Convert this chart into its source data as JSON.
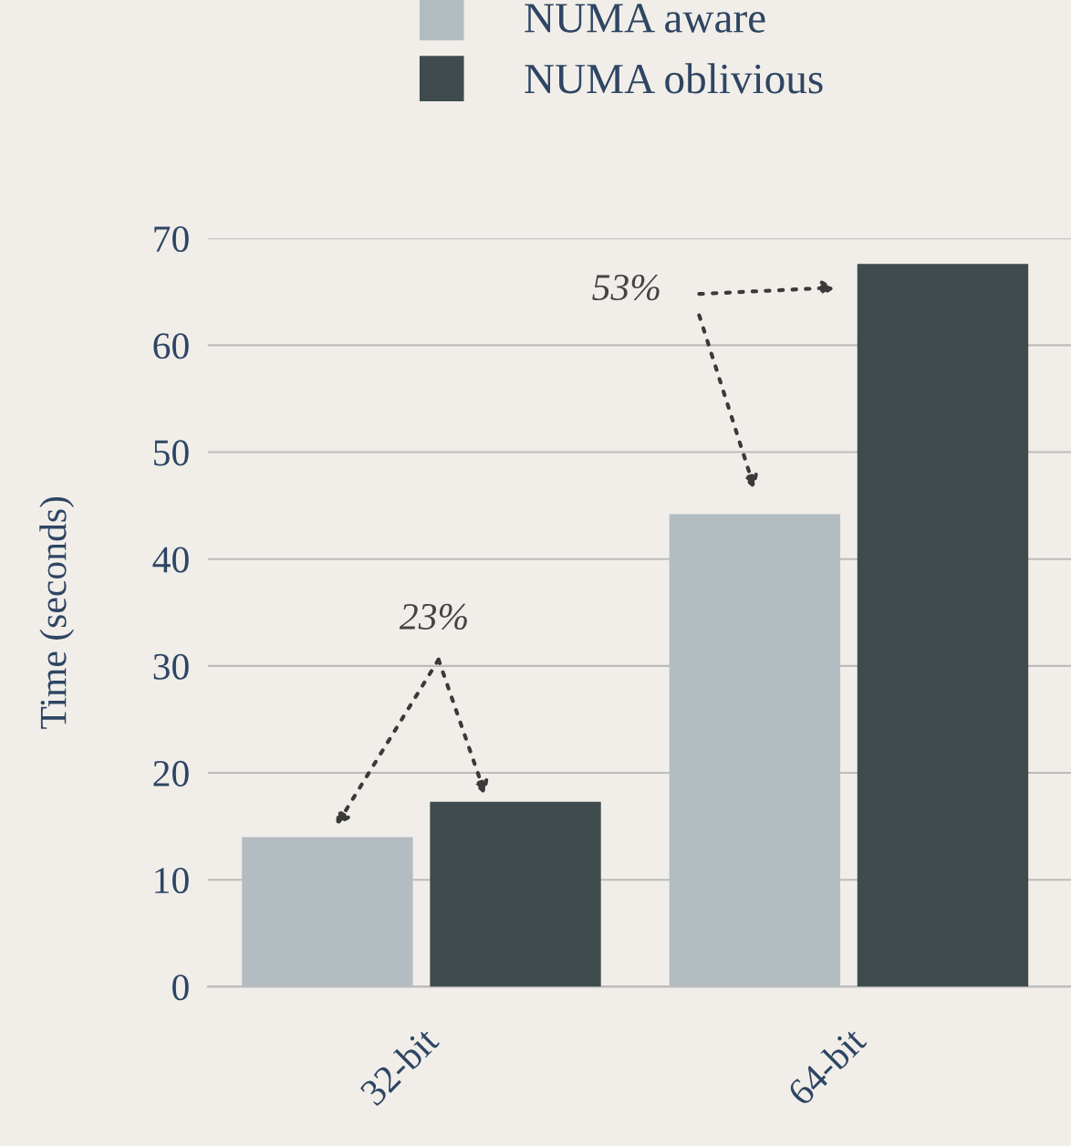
{
  "chart_data": {
    "type": "bar",
    "ylabel": "Time (seconds)",
    "categories": [
      "32-bit",
      "64-bit"
    ],
    "series": [
      {
        "name": "NUMA aware",
        "color": "#b3bcc1",
        "values": [
          14,
          44.2
        ]
      },
      {
        "name": "NUMA oblivious",
        "color": "#3f4b4d",
        "values": [
          17.3,
          67.6
        ]
      }
    ],
    "ylim": [
      0,
      70
    ],
    "yticks": [
      0,
      10,
      20,
      30,
      40,
      50,
      60,
      70
    ],
    "grid": "y",
    "legend": "top",
    "annotations": [
      "23%",
      "53%"
    ]
  }
}
